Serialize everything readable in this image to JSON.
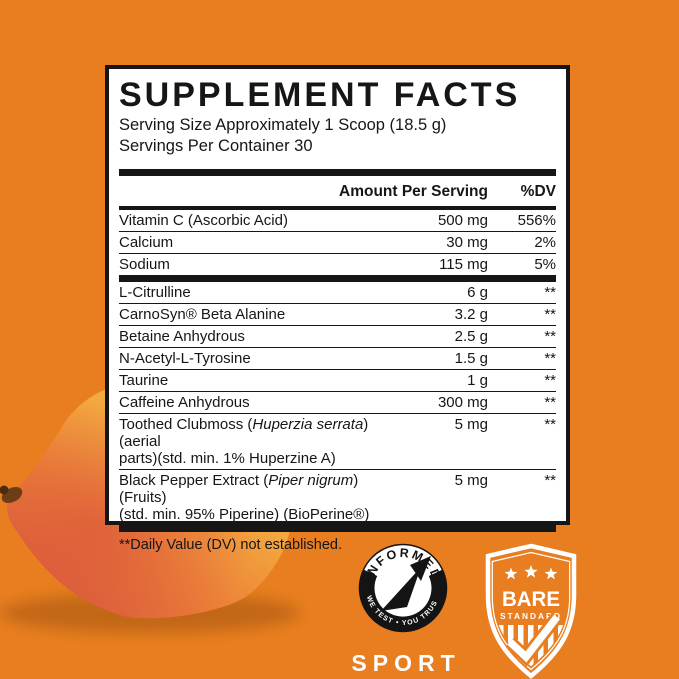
{
  "colors": {
    "background": "#E87E20",
    "panel_background": "#FFFFFF",
    "panel_ink": "#161616",
    "badge_ink": "#FFFFFF",
    "informed_ring": "#141414",
    "mango_yellow": "#EFC24D",
    "mango_orange": "#F0993C",
    "mango_blush": "#DD6540"
  },
  "panel": {
    "title": "SUPPLEMENT FACTS",
    "serving_size": "Serving Size Approximately 1 Scoop (18.5 g)",
    "servings_per_container": "Servings Per Container 30",
    "columns": {
      "amount": "Amount Per Serving",
      "dv": "%DV"
    },
    "nutrients": [
      {
        "name": "Vitamin C (Ascorbic Acid)",
        "amount": "500 mg",
        "dv": "556%"
      },
      {
        "name": "Calcium",
        "amount": "30 mg",
        "dv": "2%"
      },
      {
        "name": "Sodium",
        "amount": "115 mg",
        "dv": "5%"
      }
    ],
    "ingredients": [
      {
        "name": "L-Citrulline",
        "amount": "6 g",
        "dv": "**"
      },
      {
        "name": "CarnoSyn® Beta Alanine",
        "amount": "3.2 g",
        "dv": "**"
      },
      {
        "name": "Betaine Anhydrous",
        "amount": "2.5 g",
        "dv": "**"
      },
      {
        "name": "N-Acetyl-L-Tyrosine",
        "amount": "1.5 g",
        "dv": "**"
      },
      {
        "name": "Taurine",
        "amount": "1 g",
        "dv": "**"
      },
      {
        "name": "Caffeine Anhydrous",
        "amount": "300 mg",
        "dv": "**"
      },
      {
        "name_parts": [
          {
            "t": "Toothed Clubmoss ("
          },
          {
            "t": "Huperzia serrata",
            "i": true
          },
          {
            "t": ")(aerial"
          },
          {
            "br": true
          },
          {
            "t": "parts)(std. min. 1% Huperzine A)"
          }
        ],
        "amount": "5 mg",
        "dv": "**"
      },
      {
        "name_parts": [
          {
            "t": "Black Pepper Extract ("
          },
          {
            "t": "Piper nigrum",
            "i": true
          },
          {
            "t": ") (Fruits)"
          },
          {
            "br": true
          },
          {
            "t": "(std. min. 95% Piperine) (BioPerine®)"
          }
        ],
        "amount": "5 mg",
        "dv": "**"
      }
    ],
    "footnote": "**Daily Value (DV) not established."
  },
  "badges": {
    "informed_sport": {
      "arc_top": "INFORMED",
      "arc_bottom": "WE TEST • YOU TRUST",
      "label": "SPORT"
    },
    "bare_standard": {
      "line1": "BARE",
      "line2": "STANDARD"
    }
  }
}
